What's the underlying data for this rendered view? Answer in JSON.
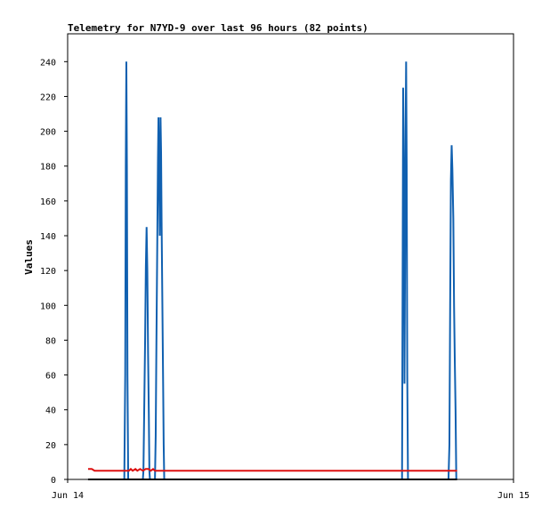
{
  "chart_data": {
    "type": "line",
    "title": "Telemetry for N7YD-9 over last 96 hours (82 points)",
    "xlabel": "",
    "ylabel": "Values",
    "ylim": [
      0,
      256
    ],
    "y_ticks": [
      0,
      20,
      40,
      60,
      80,
      100,
      120,
      140,
      160,
      180,
      200,
      220,
      240
    ],
    "xlim": [
      0,
      24
    ],
    "x_tick_labels": [
      {
        "x": 0,
        "label": "Jun 14"
      },
      {
        "x": 24,
        "label": "Jun 15"
      }
    ],
    "grid": false,
    "legend": "none",
    "series": [
      {
        "color": "#1060b0",
        "points": [
          [
            1.1,
            0
          ],
          [
            3.05,
            0
          ],
          [
            3.1,
            60
          ],
          [
            3.13,
            180
          ],
          [
            3.16,
            240
          ],
          [
            3.19,
            180
          ],
          [
            3.22,
            60
          ],
          [
            3.26,
            0
          ],
          [
            4.05,
            0
          ],
          [
            4.08,
            5
          ],
          [
            4.12,
            38
          ],
          [
            4.17,
            80
          ],
          [
            4.21,
            122
          ],
          [
            4.25,
            145
          ],
          [
            4.29,
            120
          ],
          [
            4.33,
            72
          ],
          [
            4.37,
            38
          ],
          [
            4.4,
            5
          ],
          [
            4.43,
            0
          ],
          [
            4.7,
            0
          ],
          [
            4.74,
            25
          ],
          [
            4.78,
            80
          ],
          [
            4.82,
            130
          ],
          [
            4.86,
            182
          ],
          [
            4.89,
            208
          ],
          [
            4.92,
            180
          ],
          [
            4.96,
            140
          ],
          [
            5.0,
            208
          ],
          [
            5.03,
            188
          ],
          [
            5.06,
            145
          ],
          [
            5.1,
            100
          ],
          [
            5.14,
            55
          ],
          [
            5.17,
            20
          ],
          [
            5.2,
            0
          ],
          [
            18.0,
            0
          ],
          [
            18.03,
            112
          ],
          [
            18.06,
            225
          ],
          [
            18.1,
            168
          ],
          [
            18.13,
            55
          ],
          [
            18.16,
            120
          ],
          [
            18.19,
            200
          ],
          [
            18.22,
            240
          ],
          [
            18.25,
            180
          ],
          [
            18.28,
            60
          ],
          [
            18.32,
            0
          ],
          [
            20.5,
            0
          ],
          [
            20.55,
            20
          ],
          [
            20.59,
            100
          ],
          [
            20.63,
            172
          ],
          [
            20.67,
            192
          ],
          [
            20.71,
            178
          ],
          [
            20.76,
            150
          ],
          [
            20.8,
            100
          ],
          [
            20.84,
            68
          ],
          [
            20.88,
            40
          ],
          [
            20.92,
            0
          ],
          [
            20.96,
            0
          ]
        ]
      },
      {
        "color": "#dd1111",
        "points": [
          [
            1.1,
            6
          ],
          [
            1.3,
            6
          ],
          [
            1.45,
            5
          ],
          [
            3.3,
            5
          ],
          [
            3.4,
            6
          ],
          [
            3.5,
            5
          ],
          [
            3.65,
            6
          ],
          [
            3.75,
            5
          ],
          [
            3.9,
            6
          ],
          [
            4.05,
            5
          ],
          [
            4.2,
            6
          ],
          [
            4.35,
            6
          ],
          [
            4.48,
            5
          ],
          [
            4.6,
            6
          ],
          [
            4.7,
            5
          ],
          [
            5.0,
            5
          ],
          [
            20.96,
            5
          ]
        ]
      },
      {
        "color": "#000000",
        "points": [
          [
            1.1,
            0
          ],
          [
            20.96,
            0
          ]
        ]
      }
    ]
  }
}
